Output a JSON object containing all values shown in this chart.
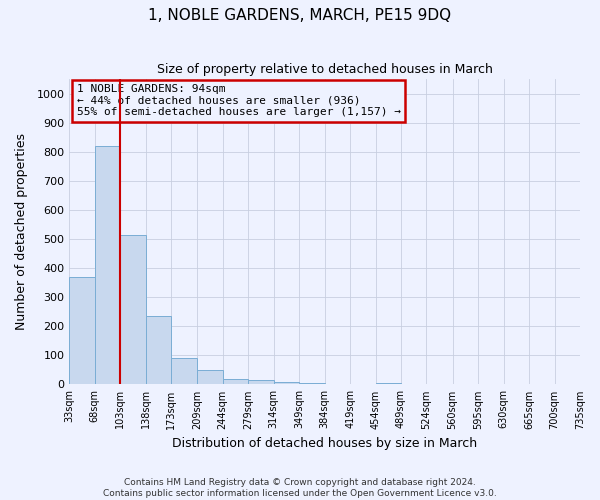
{
  "title": "1, NOBLE GARDENS, MARCH, PE15 9DQ",
  "subtitle": "Size of property relative to detached houses in March",
  "xlabel": "Distribution of detached houses by size in March",
  "ylabel": "Number of detached properties",
  "bar_lefts": [
    33,
    68,
    103,
    138,
    173,
    209,
    244,
    279,
    314,
    349,
    384,
    419,
    454,
    489,
    524,
    560,
    595,
    630,
    665,
    700
  ],
  "bar_rights": [
    68,
    103,
    138,
    173,
    209,
    244,
    279,
    314,
    349,
    384,
    419,
    454,
    489,
    524,
    560,
    595,
    630,
    665,
    700,
    735
  ],
  "bar_heights": [
    370,
    820,
    515,
    235,
    92,
    50,
    20,
    15,
    8,
    5,
    0,
    0,
    5,
    0,
    0,
    0,
    0,
    0,
    0,
    0
  ],
  "bar_color": "#c8d8ee",
  "bar_edge_color": "#7aadd4",
  "vline_x": 103,
  "vline_color": "#cc0000",
  "annotation_title": "1 NOBLE GARDENS: 94sqm",
  "annotation_line2": "← 44% of detached houses are smaller (936)",
  "annotation_line3": "55% of semi-detached houses are larger (1,157) →",
  "annotation_box_color": "#cc0000",
  "annotation_bg_color": "#eef2ff",
  "ylim": [
    0,
    1050
  ],
  "yticks": [
    0,
    100,
    200,
    300,
    400,
    500,
    600,
    700,
    800,
    900,
    1000
  ],
  "xlim_left": 33,
  "xlim_right": 735,
  "tick_labels": [
    "33sqm",
    "68sqm",
    "103sqm",
    "138sqm",
    "173sqm",
    "209sqm",
    "244sqm",
    "279sqm",
    "314sqm",
    "349sqm",
    "384sqm",
    "419sqm",
    "454sqm",
    "489sqm",
    "524sqm",
    "560sqm",
    "595sqm",
    "630sqm",
    "665sqm",
    "700sqm",
    "735sqm"
  ],
  "tick_positions": [
    33,
    68,
    103,
    138,
    173,
    209,
    244,
    279,
    314,
    349,
    384,
    419,
    454,
    489,
    524,
    560,
    595,
    630,
    665,
    700,
    735
  ],
  "grid_color": "#c8cfe0",
  "bg_color": "#eef2ff",
  "footer_line1": "Contains HM Land Registry data © Crown copyright and database right 2024.",
  "footer_line2": "Contains public sector information licensed under the Open Government Licence v3.0."
}
